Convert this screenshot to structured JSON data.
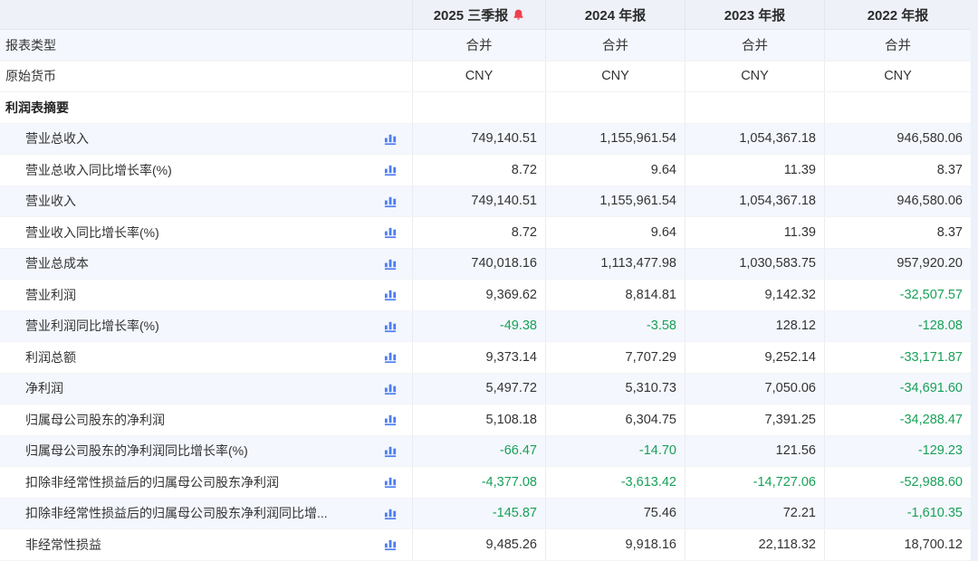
{
  "header": {
    "columns": [
      "2025 三季报",
      "2024 年报",
      "2023 年报",
      "2022 年报"
    ],
    "alert_icon": "bell-icon"
  },
  "colors": {
    "negative_value": "#18a058",
    "chart_icon_blue": "#4d7df2",
    "alert_bell_red": "#ef3f4e",
    "shaded_row": "#f4f7fd",
    "header_background": "#eef1f8"
  },
  "rows": [
    {
      "label": "报表类型",
      "type": "info",
      "values": [
        "合并",
        "合并",
        "合并",
        "合并"
      ]
    },
    {
      "label": "原始货币",
      "type": "info",
      "values": [
        "CNY",
        "CNY",
        "CNY",
        "CNY"
      ]
    },
    {
      "label": "利润表摘要",
      "type": "section",
      "values": [
        "",
        "",
        "",
        ""
      ]
    },
    {
      "label": "营业总收入",
      "type": "data",
      "values": [
        "749,140.51",
        "1,155,961.54",
        "1,054,367.18",
        "946,580.06"
      ]
    },
    {
      "label": "营业总收入同比增长率(%)",
      "type": "data",
      "values": [
        "8.72",
        "9.64",
        "11.39",
        "8.37"
      ]
    },
    {
      "label": "营业收入",
      "type": "data",
      "values": [
        "749,140.51",
        "1,155,961.54",
        "1,054,367.18",
        "946,580.06"
      ]
    },
    {
      "label": "营业收入同比增长率(%)",
      "type": "data",
      "values": [
        "8.72",
        "9.64",
        "11.39",
        "8.37"
      ]
    },
    {
      "label": "营业总成本",
      "type": "data",
      "values": [
        "740,018.16",
        "1,113,477.98",
        "1,030,583.75",
        "957,920.20"
      ]
    },
    {
      "label": "营业利润",
      "type": "data",
      "values": [
        "9,369.62",
        "8,814.81",
        "9,142.32",
        "-32,507.57"
      ]
    },
    {
      "label": "营业利润同比增长率(%)",
      "type": "data",
      "values": [
        "-49.38",
        "-3.58",
        "128.12",
        "-128.08"
      ]
    },
    {
      "label": "利润总额",
      "type": "data",
      "values": [
        "9,373.14",
        "7,707.29",
        "9,252.14",
        "-33,171.87"
      ]
    },
    {
      "label": "净利润",
      "type": "data",
      "values": [
        "5,497.72",
        "5,310.73",
        "7,050.06",
        "-34,691.60"
      ]
    },
    {
      "label": "归属母公司股东的净利润",
      "type": "data",
      "values": [
        "5,108.18",
        "6,304.75",
        "7,391.25",
        "-34,288.47"
      ]
    },
    {
      "label": "归属母公司股东的净利润同比增长率(%)",
      "type": "data",
      "values": [
        "-66.47",
        "-14.70",
        "121.56",
        "-129.23"
      ]
    },
    {
      "label": "扣除非经常性损益后的归属母公司股东净利润",
      "type": "data",
      "values": [
        "-4,377.08",
        "-3,613.42",
        "-14,727.06",
        "-52,988.60"
      ]
    },
    {
      "label": "扣除非经常性损益后的归属母公司股东净利润同比增...",
      "type": "data",
      "values": [
        "-145.87",
        "75.46",
        "72.21",
        "-1,610.35"
      ]
    },
    {
      "label": "非经常性损益",
      "type": "data",
      "values": [
        "9,485.26",
        "9,918.16",
        "22,118.32",
        "18,700.12"
      ]
    }
  ]
}
